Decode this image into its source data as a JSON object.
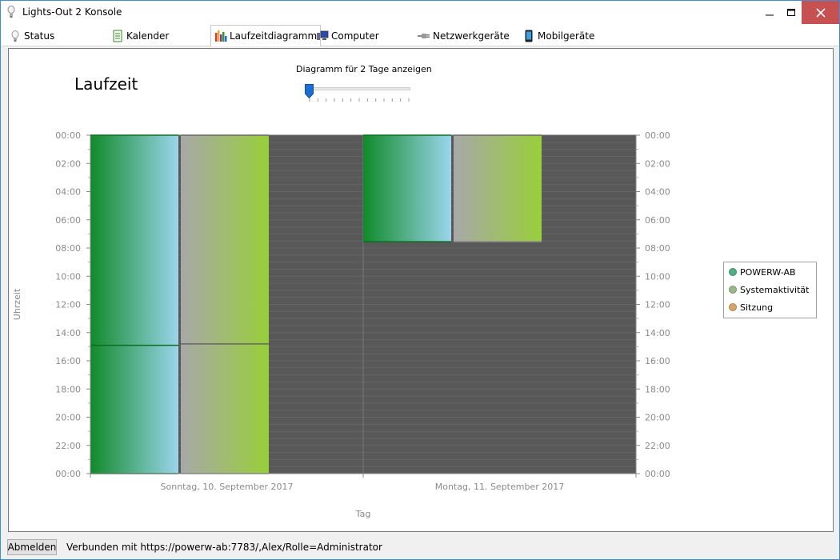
{
  "window": {
    "title": "Lights-Out 2 Konsole",
    "close_color": "#c75050"
  },
  "tabs": [
    {
      "label": "Status",
      "icon": "bulb-icon"
    },
    {
      "label": "Kalender",
      "icon": "calendar-icon"
    },
    {
      "label": "Laufzeitdiagramm",
      "icon": "bar-chart-icon",
      "active": true
    },
    {
      "label": "Computer",
      "icon": "computer-icon"
    },
    {
      "label": "Netzwerkgeräte",
      "icon": "network-plug-icon"
    },
    {
      "label": "Mobilgeräte",
      "icon": "mobile-phone-icon"
    }
  ],
  "page": {
    "title": "Laufzeit",
    "slider_label": "Diagramm für 2 Tage anzeigen",
    "slider_value": 2,
    "slider_min": 2,
    "slider_max": 14
  },
  "chart_data": {
    "type": "bar",
    "categories": [
      "Sonntag, 10. September 2017",
      "Montag, 11. September 2017"
    ],
    "xlabel": "Tag",
    "ylabel": "Uhrzeit",
    "y_ticks": [
      "00:00",
      "02:00",
      "04:00",
      "06:00",
      "08:00",
      "10:00",
      "12:00",
      "14:00",
      "16:00",
      "18:00",
      "20:00",
      "22:00",
      "00:00"
    ],
    "ylim_hours": [
      0,
      24
    ],
    "y_inverted": true,
    "series": [
      {
        "name": "POWERW-AB",
        "color_dark": "#118a2a",
        "color_light": "#9ad5ec",
        "segments": [
          [
            [
              0,
              14.9
            ],
            [
              14.9,
              24
            ]
          ],
          [
            [
              0,
              7.55
            ]
          ]
        ]
      },
      {
        "name": "Systemaktivität",
        "color_dark": "#a8a8a8",
        "color_light": "#98cf3a",
        "segments": [
          [
            [
              0,
              14.8
            ],
            [
              14.8,
              24
            ]
          ],
          [
            [
              0,
              7.55
            ]
          ]
        ]
      },
      {
        "name": "Sitzung",
        "color_dark": "#d4a56a",
        "color_light": "#d4a56a",
        "segments": [
          [],
          []
        ]
      }
    ],
    "legend_placement": "right",
    "plot_background": "#585858"
  },
  "legend": [
    {
      "label": "POWERW-AB",
      "color": "#4fae86"
    },
    {
      "label": "Systemaktivität",
      "color": "#99b88a"
    },
    {
      "label": "Sitzung",
      "color": "#d4a56a"
    }
  ],
  "status": {
    "logout_label": "Abmelden",
    "connection_text": "Verbunden  mit  https://powerw-ab:7783/,Alex/Rolle=Administrator"
  }
}
